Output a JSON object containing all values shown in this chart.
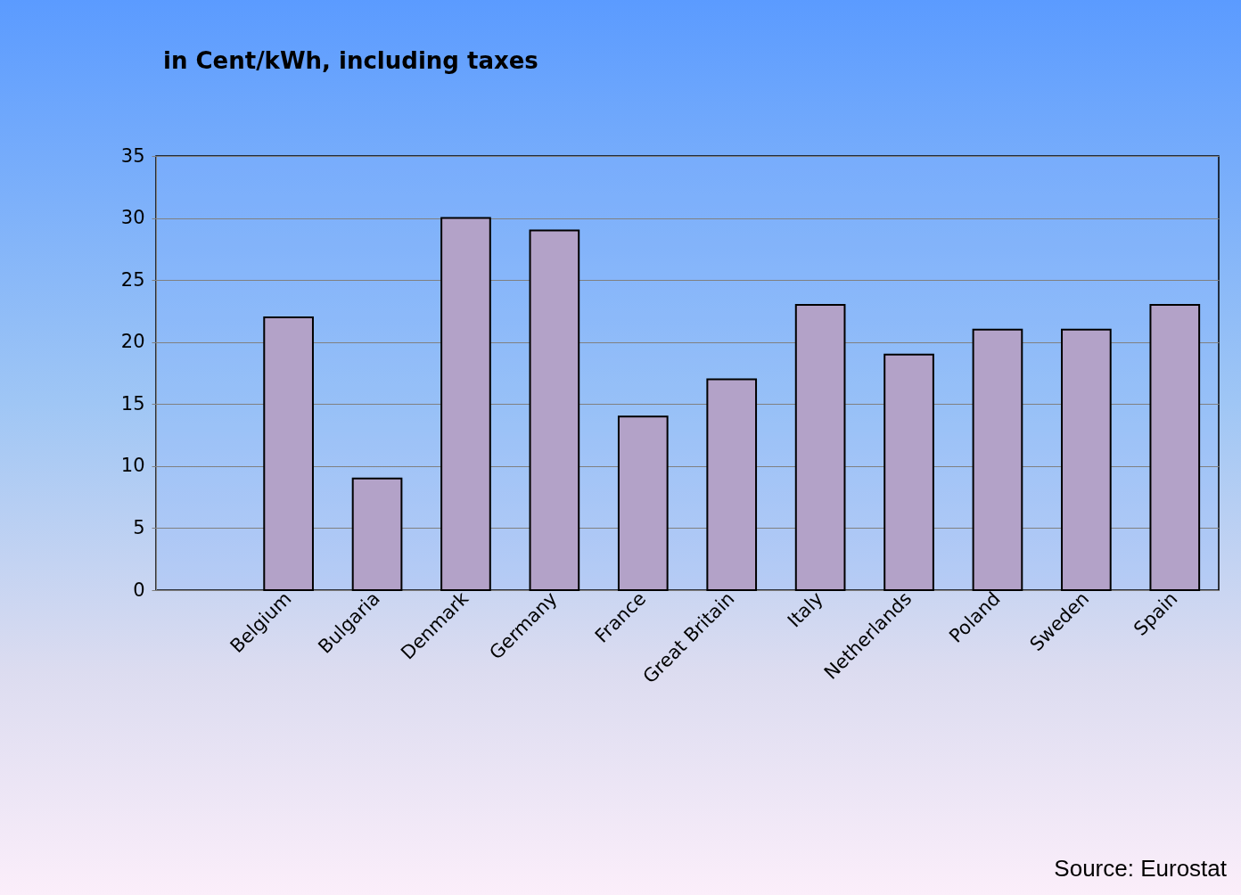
{
  "chart_data": {
    "type": "bar",
    "title": "in Cent/kWh, including taxes",
    "categories": [
      null,
      "Belgium",
      "Bulgaria",
      "Denmark",
      "Germany",
      "France",
      "Great Britain",
      "Italy",
      "Netherlands",
      "Poland",
      "Sweden",
      "Spain"
    ],
    "values": [
      null,
      22,
      9,
      30,
      29,
      14,
      17,
      23,
      19,
      21,
      21,
      23
    ],
    "color": "#b3a2c8",
    "ylim": [
      0,
      35
    ],
    "yticks": [
      0,
      5,
      10,
      15,
      20,
      25,
      30,
      35
    ],
    "grid": "y",
    "annotations": [
      "Source: Eurostat"
    ]
  }
}
